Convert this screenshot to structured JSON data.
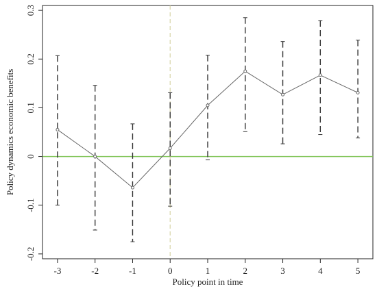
{
  "chart_data": {
    "type": "errorbar",
    "x_label": "Policy point in time",
    "y_label": "Policy dynamics economic benefits",
    "x": [
      -3,
      -2,
      -1,
      0,
      1,
      2,
      3,
      4,
      5
    ],
    "values": [
      0.055,
      0,
      -0.064,
      0.017,
      0.105,
      0.175,
      0.127,
      0.167,
      0.131
    ],
    "lower": [
      -0.1,
      -0.151,
      -0.175,
      -0.102,
      -0.007,
      0.051,
      0.026,
      0.045,
      0.038
    ],
    "upper": [
      0.207,
      0.146,
      0.067,
      0.131,
      0.208,
      0.285,
      0.236,
      0.279,
      0.239
    ],
    "color": "#666666",
    "errorbar_color": "#333333",
    "xlim": [
      -3.4,
      5.4
    ],
    "ylim": [
      -0.21,
      0.31
    ],
    "xticks": [
      -3,
      -2,
      -1,
      0,
      1,
      2,
      3,
      4,
      5
    ],
    "yticks": [
      -0.2,
      -0.1,
      0,
      0.1,
      0.2,
      0.3
    ],
    "hline": {
      "value": 0,
      "color": "#7dc353"
    },
    "vline": {
      "value": 0,
      "color": "#d8d4a8"
    }
  }
}
